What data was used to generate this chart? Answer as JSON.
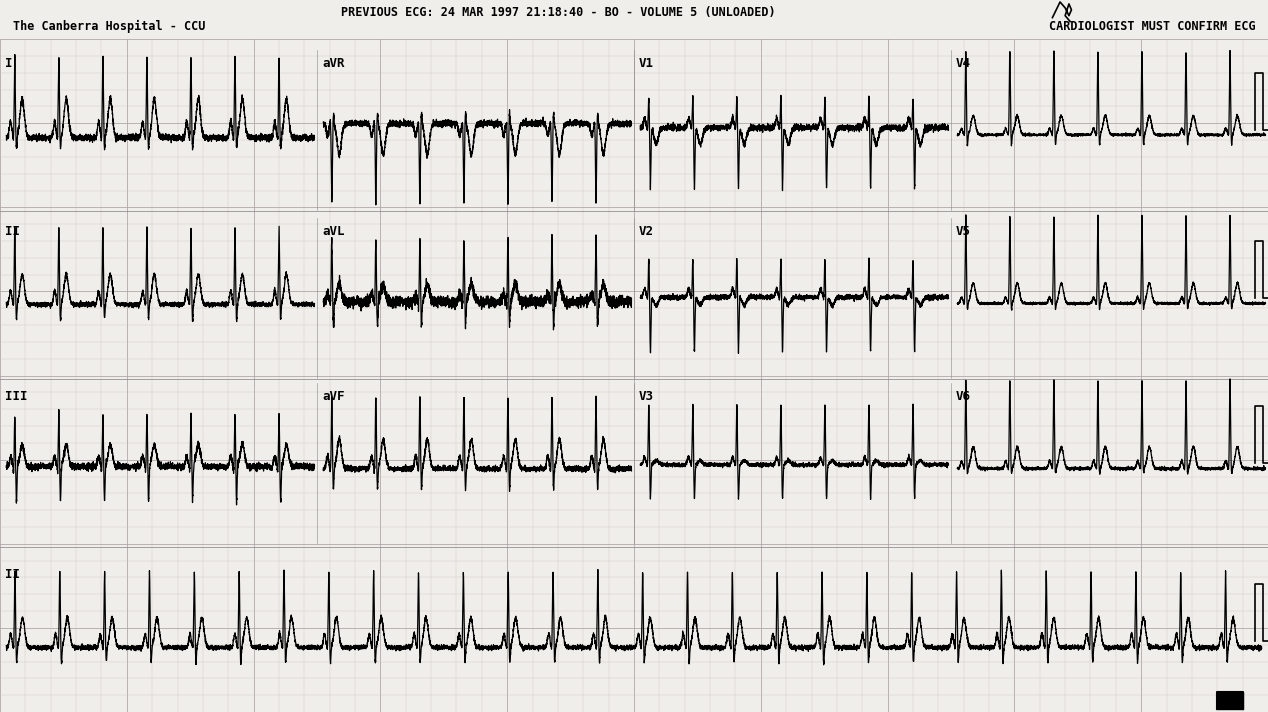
{
  "title_center": "PREVIOUS ECG: 24 MAR 1997 21:18:40 - BO - VOLUME 5 (UNLOADED)",
  "title_left": "The Canberra Hospital - CCU",
  "title_right": "CARDIOLOGIST MUST CONFIRM ECG",
  "background_color": "#f0eeea",
  "grid_minor_color": "#c8c0c0",
  "grid_major_color": "#b0a8a8",
  "lead_labels_row1": [
    "I",
    "aVR",
    "V1",
    "V4"
  ],
  "lead_labels_row2": [
    "II",
    "aVL",
    "V2",
    "V5"
  ],
  "lead_labels_row3": [
    "III",
    "aVF",
    "V3",
    "V6"
  ],
  "lead_labels_row4": [
    "II"
  ],
  "ecg_color": "#000000",
  "header_font_size": 8.5,
  "label_font_size": 9
}
